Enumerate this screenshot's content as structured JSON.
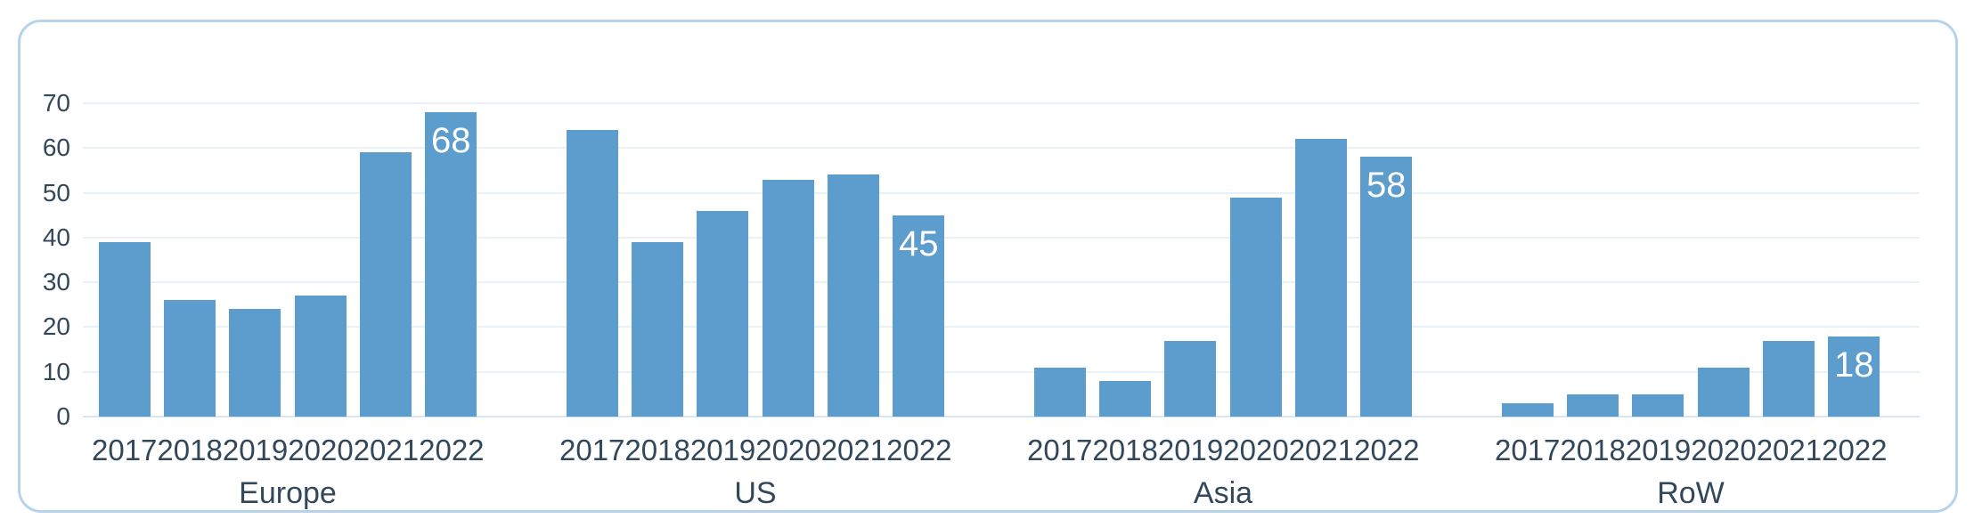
{
  "chart_data": {
    "type": "bar",
    "title": "",
    "xlabel": "",
    "ylabel": "",
    "ylim": [
      0,
      70
    ],
    "yticks": [
      0,
      10,
      20,
      30,
      40,
      50,
      60,
      70
    ],
    "grid": true,
    "legend": "none",
    "categories": [
      "2017",
      "2018",
      "2019",
      "2020",
      "2021",
      "2022"
    ],
    "series": [
      {
        "name": "Europe",
        "values": [
          39,
          26,
          24,
          27,
          59,
          68
        ],
        "data_label": {
          "index": 5,
          "text": "68"
        }
      },
      {
        "name": "US",
        "values": [
          64,
          39,
          46,
          53,
          54,
          45
        ],
        "data_label": {
          "index": 5,
          "text": "45"
        }
      },
      {
        "name": "Asia",
        "values": [
          11,
          8,
          17,
          49,
          62,
          58
        ],
        "data_label": {
          "index": 5,
          "text": "58"
        }
      },
      {
        "name": "RoW",
        "values": [
          3,
          5,
          5,
          11,
          17,
          18
        ],
        "data_label": {
          "index": 5,
          "text": "18"
        }
      }
    ]
  },
  "colors": {
    "bar_fill": "#5c9dcd",
    "axis_text": "#33475b",
    "gridline": "#e9f1f8",
    "baseline": "#d6e6f2",
    "card_border": "#b7d3ea",
    "data_label_text": "#ffffff",
    "background": "#ffffff"
  }
}
